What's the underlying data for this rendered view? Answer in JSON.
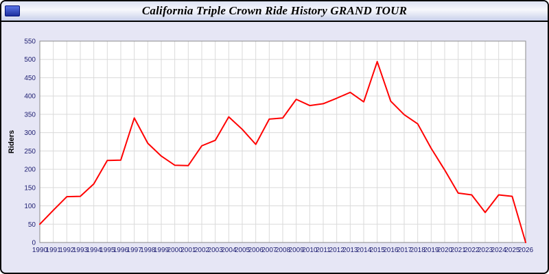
{
  "window": {
    "title": "California Triple Crown Ride History GRAND TOUR"
  },
  "chart_data": {
    "type": "line",
    "title": "California Triple Crown Ride History GRAND TOUR",
    "xlabel": "",
    "ylabel": "Riders",
    "ylim": [
      0,
      550
    ],
    "ytick_step": 50,
    "grid": true,
    "legend_position": "none",
    "line_color": "#ff0000",
    "plot_background": "#ffffff",
    "page_background": "#e6e6f5",
    "x": [
      1990,
      1991,
      1992,
      1993,
      1994,
      1995,
      1996,
      1997,
      1998,
      1999,
      2000,
      2001,
      2002,
      2003,
      2004,
      2005,
      2006,
      2007,
      2008,
      2009,
      2010,
      2011,
      2012,
      2013,
      2014,
      2015,
      2016,
      2017,
      2018,
      2019,
      2020,
      2021,
      2022,
      2023,
      2024,
      2025,
      2026
    ],
    "series": [
      {
        "name": "Riders",
        "values": [
          50,
          88,
          125,
          126,
          160,
          224,
          225,
          340,
          271,
          236,
          211,
          210,
          264,
          279,
          343,
          309,
          268,
          337,
          340,
          391,
          374,
          379,
          394,
          410,
          384,
          494,
          386,
          349,
          324,
          257,
          198,
          135,
          130,
          82,
          130,
          126,
          0
        ]
      }
    ]
  }
}
